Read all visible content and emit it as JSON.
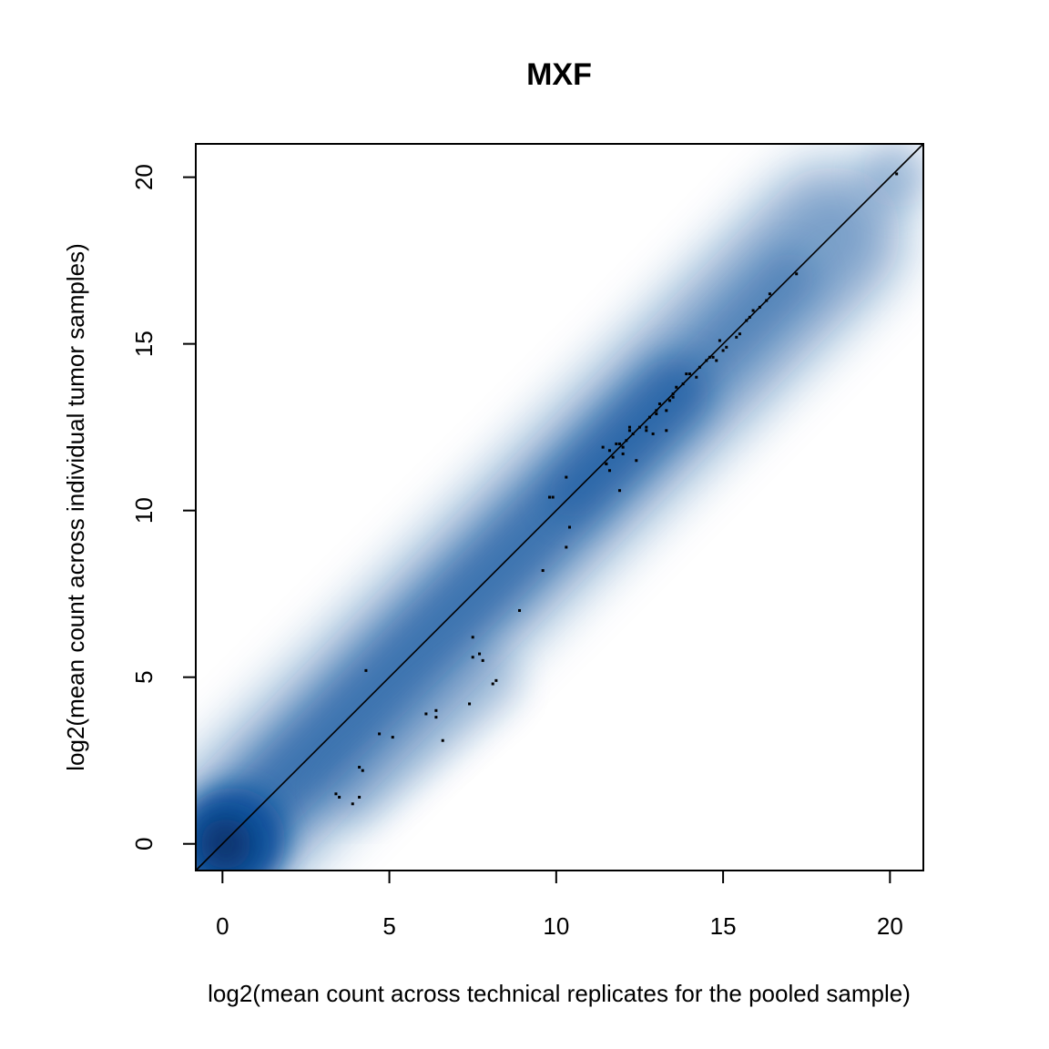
{
  "chart_data": {
    "type": "scatter",
    "title": "MXF",
    "xlabel": "log2(mean count across technical replicates for the pooled sample)",
    "ylabel": "log2(mean count across individual tumor samples)",
    "xlim": [
      -0.8,
      21
    ],
    "ylim": [
      -0.8,
      21
    ],
    "x_ticks": [
      0,
      5,
      10,
      15,
      20
    ],
    "y_ticks": [
      0,
      5,
      10,
      15,
      20
    ],
    "x_tick_labels": [
      "0",
      "5",
      "10",
      "15",
      "20"
    ],
    "y_tick_labels": [
      "0",
      "5",
      "10",
      "15",
      "20"
    ],
    "reference_line": {
      "slope": 1,
      "intercept": 0
    },
    "density_color": "#08519c",
    "grid": false,
    "legend": "none",
    "series": [
      {
        "x": [
          4.3,
          4.7,
          5.1,
          4.1,
          4.2,
          3.4,
          3.5,
          3.9,
          4.1,
          6.1,
          6.4,
          6.4,
          6.6,
          7.4,
          7.5,
          7.7,
          7.5,
          7.8,
          8.1,
          8.2,
          8.9,
          9.6,
          9.8,
          9.9,
          10.3,
          10.4,
          10.3,
          11.4,
          11.5,
          11.6,
          11.7,
          11.9,
          12.0,
          12.1,
          12.2,
          12.3,
          11.9,
          12.4,
          12.5,
          12.7,
          12.8,
          13.0,
          13.1,
          13.3,
          13.4,
          13.5,
          13.6,
          13.8,
          13.9,
          14.2,
          14.3,
          14.5,
          14.6,
          14.8,
          14.9,
          15.0,
          15.1,
          15.4,
          15.5,
          15.7,
          15.8,
          15.9,
          16.1,
          16.3,
          16.4,
          17.2,
          20.2,
          11.6,
          12.9,
          13.3,
          11.5,
          12.2,
          12.7,
          13.0,
          13.5,
          14.0,
          14.7,
          12.0,
          11.8
        ],
        "y": [
          5.2,
          3.3,
          3.2,
          2.3,
          2.2,
          1.5,
          1.4,
          1.2,
          1.4,
          3.9,
          4.0,
          3.8,
          3.1,
          4.2,
          6.2,
          5.7,
          5.6,
          5.5,
          4.8,
          4.9,
          7.0,
          8.2,
          10.4,
          10.4,
          11.0,
          9.5,
          8.9,
          11.9,
          11.4,
          11.2,
          11.6,
          12.0,
          11.7,
          12.1,
          12.4,
          12.3,
          10.6,
          11.5,
          12.5,
          12.5,
          12.8,
          13.0,
          13.2,
          13.0,
          13.3,
          13.5,
          13.7,
          13.8,
          14.1,
          14.0,
          14.3,
          14.5,
          14.6,
          14.5,
          15.1,
          14.8,
          14.9,
          15.2,
          15.3,
          15.7,
          15.8,
          16.0,
          16.1,
          16.3,
          16.5,
          17.1,
          20.1,
          11.8,
          12.3,
          12.4,
          11.4,
          12.5,
          12.4,
          12.9,
          13.4,
          14.1,
          14.6,
          11.9,
          12.0
        ]
      }
    ]
  }
}
